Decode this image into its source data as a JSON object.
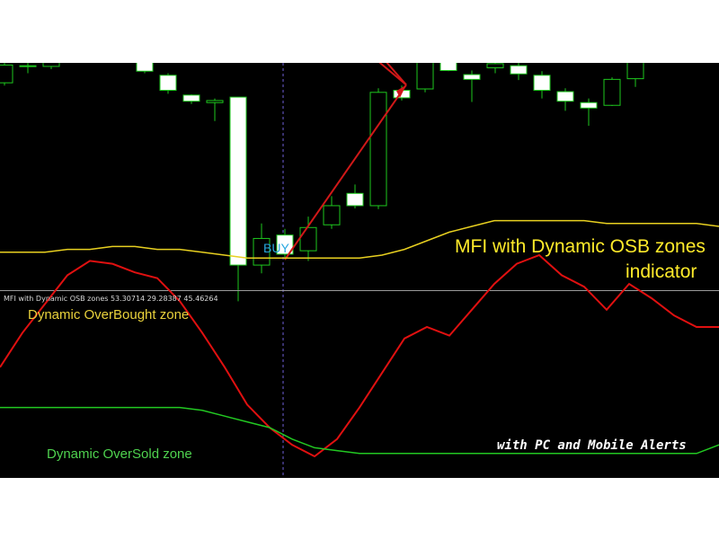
{
  "title_line1": "MFI with Dynamic OSB zones",
  "title_line2": "indicator",
  "buy_label": "BUY",
  "indicator_header": "MFI with Dynamic OSB zones 53.30714 29.28387 45.46264",
  "overbought_label": "Dynamic OverBought zone",
  "oversold_label": "Dynamic OverSold zone",
  "alerts_label": "with PC and Mobile Alerts",
  "colors": {
    "background": "#000000",
    "bull_candle": "#1ec81e",
    "bear_candle_body": "#ffffff",
    "mfi_line": "#e01010",
    "overbought_line": "#e8d020",
    "oversold_line": "#22c822",
    "arrow": "#d01818",
    "signal_line": "#7060d8",
    "separator": "#9a9a9a"
  },
  "chart_data": [
    {
      "type": "candlestick",
      "candles": [
        {
          "i": 0,
          "o": 34,
          "c": 60,
          "h": 66,
          "l": 30
        },
        {
          "i": 1,
          "o": 58,
          "c": 59,
          "h": 70,
          "l": 48
        },
        {
          "i": 2,
          "o": 58,
          "c": 87,
          "h": 92,
          "l": 54
        },
        {
          "i": 3,
          "o": 87,
          "c": 83,
          "h": 92,
          "l": 78
        },
        {
          "i": 4,
          "o": 82,
          "c": 70,
          "h": 87,
          "l": 67
        },
        {
          "i": 5,
          "o": 72,
          "c": 67,
          "h": 74,
          "l": 63
        },
        {
          "i": 6,
          "o": 64,
          "c": 51,
          "h": 69,
          "l": 48
        },
        {
          "i": 7,
          "o": 45,
          "c": 23,
          "h": 48,
          "l": 18
        },
        {
          "i": 8,
          "o": 16,
          "c": 7,
          "h": 17,
          "l": 3
        },
        {
          "i": 9,
          "o": 5,
          "c": 8,
          "h": 11,
          "l": -22
        },
        {
          "i": 10,
          "o": 13,
          "c": -233,
          "h": 13,
          "l": -286
        },
        {
          "i": 11,
          "o": -233,
          "c": -194,
          "h": -172,
          "l": -245
        },
        {
          "i": 12,
          "o": -189,
          "c": -217,
          "h": -180,
          "l": -223
        },
        {
          "i": 13,
          "o": -212,
          "c": -178,
          "h": -162,
          "l": -227
        },
        {
          "i": 14,
          "o": -174,
          "c": -146,
          "h": -132,
          "l": -180
        },
        {
          "i": 15,
          "o": -128,
          "c": -146,
          "h": -115,
          "l": -150
        },
        {
          "i": 16,
          "o": -146,
          "c": 20,
          "h": 26,
          "l": -151
        },
        {
          "i": 17,
          "o": 23,
          "c": 12,
          "h": 30,
          "l": 8
        },
        {
          "i": 18,
          "o": 25,
          "c": 89,
          "h": 91,
          "l": 20
        },
        {
          "i": 19,
          "o": 91,
          "c": 52,
          "h": 96,
          "l": 51
        },
        {
          "i": 20,
          "o": 46,
          "c": 39,
          "h": 52,
          "l": 6
        },
        {
          "i": 21,
          "o": 56,
          "c": 62,
          "h": 68,
          "l": 48
        },
        {
          "i": 22,
          "o": 59,
          "c": 47,
          "h": 64,
          "l": 38
        },
        {
          "i": 23,
          "o": 45,
          "c": 23,
          "h": 51,
          "l": 11
        },
        {
          "i": 24,
          "o": 21,
          "c": 7,
          "h": 26,
          "l": -7
        },
        {
          "i": 25,
          "o": 5,
          "c": -3,
          "h": 11,
          "l": -29
        },
        {
          "i": 26,
          "o": 1,
          "c": 39,
          "h": 42,
          "l": 0
        },
        {
          "i": 27,
          "o": 40,
          "c": 102,
          "h": 112,
          "l": 28
        },
        {
          "i": 28,
          "o": 109,
          "c": 94,
          "h": 115,
          "l": 77
        },
        {
          "i": 29,
          "o": 78,
          "c": 74,
          "h": 89,
          "l": 67
        },
        {
          "i": 30,
          "o": 83,
          "c": 117,
          "h": 134,
          "l": 67
        }
      ]
    },
    {
      "type": "line",
      "series": [
        {
          "name": "MFI",
          "values": [
            41,
            53,
            63,
            73,
            78,
            77,
            74,
            72,
            64,
            53,
            41,
            28,
            20,
            14,
            10,
            16,
            27,
            39,
            51,
            55,
            52,
            61,
            70,
            77,
            80,
            73,
            69,
            61,
            70,
            65,
            59,
            55,
            55
          ]
        },
        {
          "name": "Dynamic OverBought zone",
          "values": [
            81,
            81,
            81,
            82,
            82,
            83,
            83,
            82,
            82,
            81,
            80,
            79,
            79,
            79,
            79,
            79,
            79,
            80,
            82,
            85,
            88,
            90,
            92,
            92,
            92,
            92,
            92,
            91,
            91,
            91,
            91,
            91,
            90
          ]
        },
        {
          "name": "Dynamic OverSold zone",
          "values": [
            27,
            27,
            27,
            27,
            27,
            27,
            27,
            27,
            27,
            26,
            24,
            22,
            20,
            16,
            13,
            12,
            11,
            11,
            11,
            11,
            11,
            11,
            11,
            11,
            11,
            11,
            11,
            11,
            11,
            11,
            11,
            11,
            14
          ]
        }
      ],
      "ylim": [
        0,
        100
      ]
    }
  ]
}
